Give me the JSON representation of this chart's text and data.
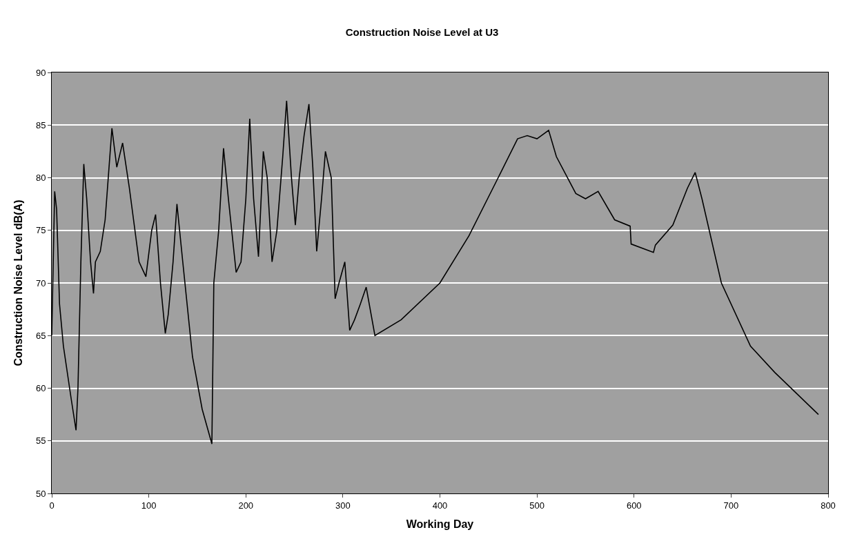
{
  "chart_data": {
    "type": "line",
    "title": "Construction Noise Level at U3",
    "xlabel": "Working Day",
    "ylabel": "Construction Noise Level dB(A)",
    "x": [
      0,
      3,
      5,
      8,
      12,
      20,
      25,
      27,
      30,
      33,
      36,
      40,
      43,
      45,
      50,
      55,
      62,
      67,
      73,
      80,
      90,
      97,
      103,
      107,
      112,
      117,
      120,
      125,
      129,
      135,
      145,
      155,
      165,
      167,
      172,
      177,
      182,
      190,
      195,
      200,
      204,
      208,
      213,
      218,
      222,
      227,
      232,
      238,
      242,
      247,
      251,
      255,
      260,
      265,
      269,
      273,
      278,
      282,
      288,
      292,
      296,
      302,
      307,
      312,
      318,
      324,
      333,
      360,
      400,
      430,
      460,
      480,
      490,
      500,
      512,
      520,
      540,
      550,
      563,
      580,
      596,
      597,
      620,
      622,
      640,
      655,
      663,
      670,
      690,
      720,
      745,
      790
    ],
    "series": [
      {
        "color": "#000000",
        "values": [
          65,
          78.7,
          77,
          68,
          64,
          59,
          56,
          60,
          72,
          81.3,
          78,
          72,
          69,
          72,
          73,
          76,
          84.7,
          81,
          83.3,
          79,
          72,
          70.6,
          75,
          76.5,
          70,
          65.2,
          67,
          72,
          77.5,
          72,
          63,
          58,
          54.7,
          70,
          75,
          82.8,
          78,
          71,
          72,
          78,
          85.6,
          78,
          72.5,
          82.5,
          80,
          72,
          75,
          82,
          87.3,
          80,
          75.5,
          80,
          84,
          87,
          81,
          73,
          78,
          82.5,
          80,
          68.5,
          70,
          72,
          65.5,
          66.5,
          68,
          69.6,
          65,
          66.5,
          70,
          74.5,
          80,
          83.7,
          84,
          83.7,
          84.5,
          82,
          78.5,
          78,
          78.7,
          76,
          75.4,
          73.7,
          72.9,
          73.6,
          75.5,
          79,
          80.5,
          78,
          70,
          64,
          61.5,
          57.5
        ]
      }
    ],
    "xlim": [
      0,
      800
    ],
    "xticks": [
      0,
      100,
      200,
      300,
      400,
      500,
      600,
      700,
      800
    ],
    "ylim": [
      50,
      90
    ],
    "yticks": [
      50,
      55,
      60,
      65,
      70,
      75,
      80,
      85,
      90
    ],
    "grid": "y",
    "legend": false,
    "marker": "none",
    "line_style": "solid"
  }
}
